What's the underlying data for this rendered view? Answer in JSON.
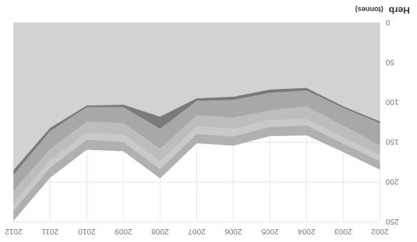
{
  "chart_data": {
    "type": "area",
    "stacked": true,
    "title": "Herb",
    "unit": "(tonnes)",
    "x": [
      "2002",
      "2003",
      "2004",
      "2005",
      "2006",
      "2007",
      "2008",
      "2009",
      "2010",
      "2011",
      "2012"
    ],
    "ylim": [
      0,
      250
    ],
    "yticks": [
      "0",
      "50",
      "100",
      "150",
      "200",
      "250"
    ],
    "grid": true,
    "legend": "none",
    "series": [
      {
        "color": "#d2d2d2",
        "values": [
          124,
          105,
          82,
          84,
          93,
          95,
          118,
          103,
          104,
          132,
          185
        ]
      },
      {
        "color": "#7a7a7a",
        "values": [
          2,
          2,
          3,
          4,
          4,
          3,
          15,
          3,
          2,
          4,
          6
        ]
      },
      {
        "color": "#a8a8a8",
        "values": [
          28,
          22,
          20,
          22,
          22,
          18,
          25,
          20,
          18,
          22,
          20
        ]
      },
      {
        "color": "#bdbdbd",
        "values": [
          12,
          15,
          16,
          12,
          14,
          14,
          16,
          14,
          14,
          14,
          15
        ]
      },
      {
        "color": "#c9c9c9",
        "values": [
          8,
          8,
          8,
          9,
          10,
          10,
          10,
          10,
          9,
          10,
          10
        ]
      },
      {
        "color": "#b0b0b0",
        "values": [
          10,
          10,
          12,
          11,
          11,
          11,
          11,
          11,
          12,
          12,
          12
        ]
      }
    ]
  }
}
